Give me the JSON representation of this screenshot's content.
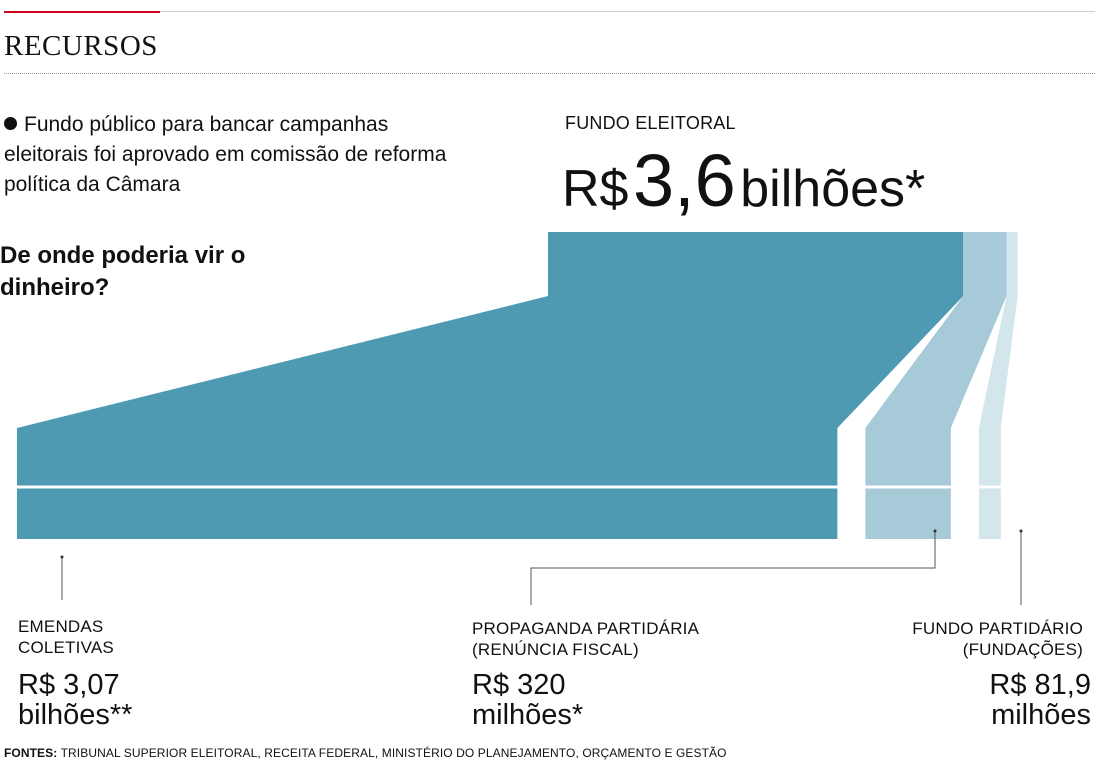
{
  "section_title": "RECURSOS",
  "intro": "Fundo público para bancar campanhas eleitorais foi aprovado em comissão de reforma política da Câmara",
  "question": "De onde poderia vir o dinheiro?",
  "fund": {
    "label": "FUNDO ELEITORAL",
    "value_prefix": "R$",
    "value_number": "3,6",
    "value_suffix": "bilhões*"
  },
  "chart_data": {
    "type": "sankey",
    "title": "FUNDO ELEITORAL",
    "total": {
      "label": "R$ 3,6 bilhões*",
      "value": 3.6,
      "unit": "R$ bilhões"
    },
    "sources": [
      {
        "label_line1": "EMENDAS",
        "label_line2": "COLETIVAS",
        "value_line1": "R$ 3,07",
        "value_line2": "bilhões**",
        "value": 3.07,
        "color": "#4e9ab3"
      },
      {
        "label_line1": "PROPAGANDA PARTIDÁRIA",
        "label_line2": "(RENÚNCIA FISCAL)",
        "value_line1": "R$ 320",
        "value_line2": "milhões*",
        "value": 0.32,
        "color": "#a6cad7"
      },
      {
        "label_line1": "FUNDO PARTIDÁRIO",
        "label_line2": "(FUNDAÇÕES)",
        "value_line1": "R$ 81,9",
        "value_line2": "milhões",
        "value": 0.0819,
        "color": "#d2e6ec"
      }
    ]
  },
  "sources_note": {
    "label": "FONTES:",
    "text": "TRIBUNAL SUPERIOR ELEITORAL, RECEITA FEDERAL, MINISTÉRIO DO PLANEJAMENTO, ORÇAMENTO E GESTÃO"
  }
}
